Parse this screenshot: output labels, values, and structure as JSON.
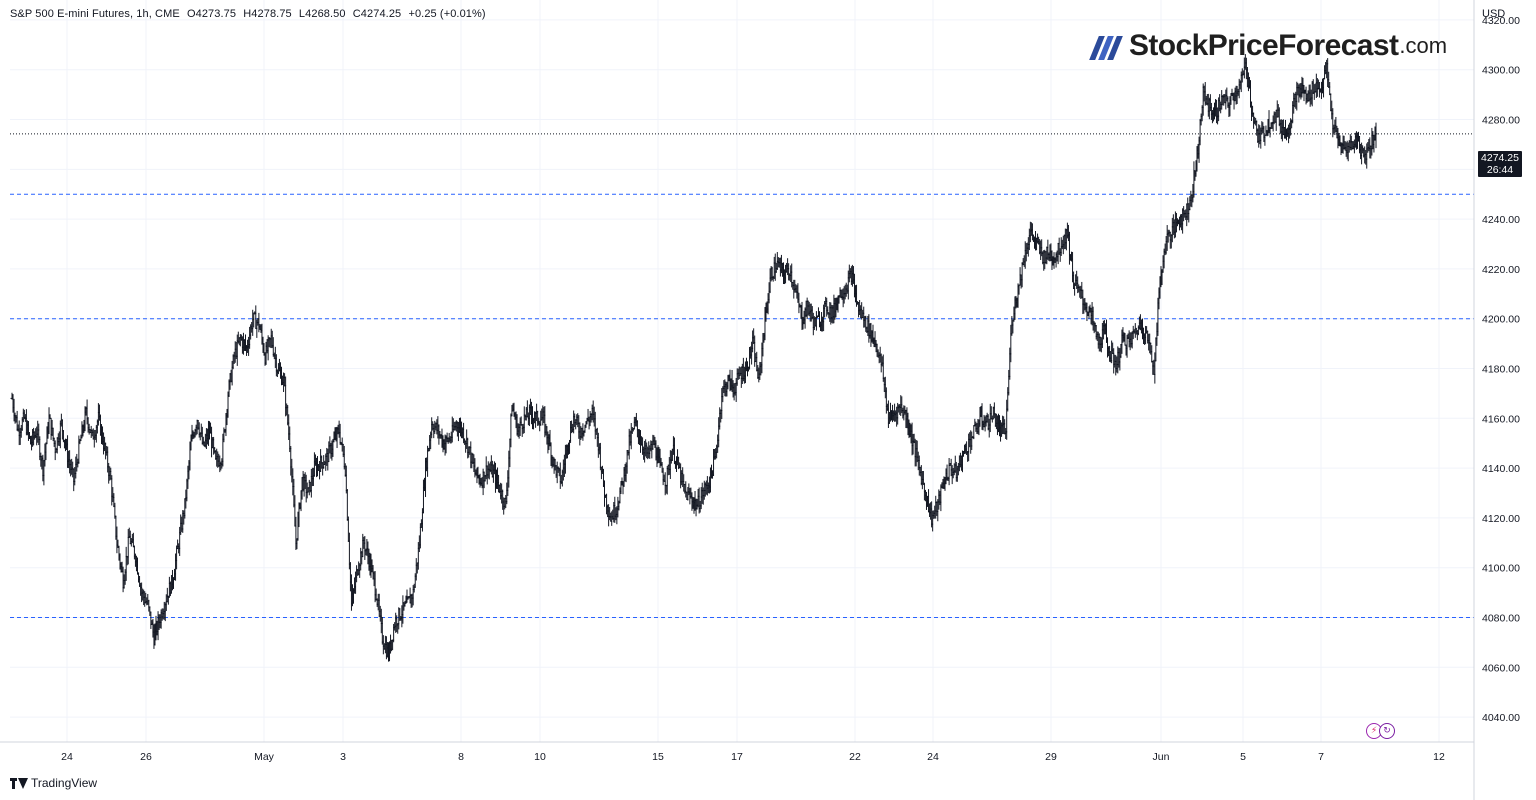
{
  "legend": {
    "symbol": "S&P 500 E-mini Futures, 1h, CME",
    "open": "O4273.75",
    "high": "H4278.75",
    "low": "L4268.50",
    "close": "C4274.25",
    "change": "+0.25 (+0.01%)"
  },
  "currency": "USD",
  "logo": {
    "brand": "StockPriceForecast",
    "tld": ".com"
  },
  "price_tag": {
    "price": "4274.25",
    "countdown": "26:44"
  },
  "footer": {
    "brand": "TradingView"
  },
  "icons": {
    "logo": "stock-price-forecast-logo-icon",
    "footer": "tradingview-logo-icon",
    "alerts": "lightning-alert-icon"
  },
  "colors": {
    "bars": "#131722",
    "level_lines": "#2962ff",
    "price_line": "#131722",
    "grid": "#f0f3fa",
    "price_tag_bg": "#131722"
  },
  "chart_data": {
    "type": "ohlc",
    "title": "S&P 500 E-mini Futures, 1h, CME",
    "x_tick_labels": [
      "24",
      "26",
      "May",
      "3",
      "8",
      "10",
      "15",
      "17",
      "22",
      "24",
      "29",
      "Jun",
      "5",
      "7",
      "12"
    ],
    "y_tick_labels": [
      "4040.00",
      "4060.00",
      "4080.00",
      "4100.00",
      "4120.00",
      "4140.00",
      "4160.00",
      "4180.00",
      "4200.00",
      "4220.00",
      "4240.00",
      "4260.00",
      "4280.00",
      "4300.00",
      "4320.00"
    ],
    "ylim": [
      4030,
      4328
    ],
    "last_price": 4274.25,
    "horizontal_levels": [
      4250,
      4200,
      4080
    ],
    "grid": true,
    "series": [
      {
        "values": [
          4168,
          4155,
          4160,
          4150,
          4155,
          4140,
          4160,
          4148,
          4158,
          4145,
          4135,
          4150,
          4162,
          4152,
          4160,
          4148,
          4135,
          4110,
          4095,
          4112,
          4105,
          4090,
          4085,
          4072,
          4080,
          4088,
          4095,
          4110,
          4125,
          4150,
          4160,
          4148,
          4155,
          4142,
          4145,
          4170,
          4185,
          4192,
          4188,
          4200,
          4198,
          4185,
          4192,
          4180,
          4175,
          4150,
          4110,
          4135,
          4130,
          4140,
          4142,
          4144,
          4150,
          4155,
          4140,
          4085,
          4100,
          4110,
          4102,
          4090,
          4072,
          4065,
          4078,
          4082,
          4085,
          4090,
          4110,
          4140,
          4158,
          4155,
          4150,
          4152,
          4158,
          4155,
          4148,
          4138,
          4135,
          4140,
          4138,
          4132,
          4125,
          4165,
          4155,
          4160,
          4162,
          4160,
          4160,
          4150,
          4140,
          4135,
          4150,
          4160,
          4155,
          4158,
          4162,
          4150,
          4130,
          4120,
          4125,
          4135,
          4150,
          4158,
          4150,
          4145,
          4150,
          4140,
          4135,
          4148,
          4140,
          4130,
          4128,
          4125,
          4130,
          4135,
          4145,
          4170,
          4175,
          4172,
          4178,
          4180,
          4190,
          4175,
          4200,
          4218,
          4222,
          4218,
          4220,
          4210,
          4200,
          4205,
          4198,
          4200,
          4205,
          4202,
          4210,
          4212,
          4218,
          4205,
          4200,
          4195,
          4190,
          4180,
          4160,
          4162,
          4165,
          4160,
          4150,
          4140,
          4130,
          4120,
          4125,
          4135,
          4140,
          4138,
          4145,
          4150,
          4155,
          4160,
          4158,
          4162,
          4155,
          4155,
          4200,
          4212,
          4225,
          4235,
          4230,
          4225,
          4226,
          4225,
          4230,
          4235,
          4215,
          4210,
          4205,
          4200,
          4190,
          4195,
          4185,
          4182,
          4192,
          4190,
          4195,
          4198,
          4192,
          4180,
          4215,
          4232,
          4235,
          4240,
          4242,
          4248,
          4265,
          4290,
          4285,
          4282,
          4288,
          4286,
          4290,
          4294,
          4302,
          4282,
          4272,
          4276,
          4280,
          4282,
          4275,
          4278,
          4290,
          4292,
          4288,
          4294,
          4292,
          4300,
          4278,
          4270,
          4268,
          4270,
          4272,
          4265,
          4270,
          4274.25
        ]
      }
    ]
  }
}
